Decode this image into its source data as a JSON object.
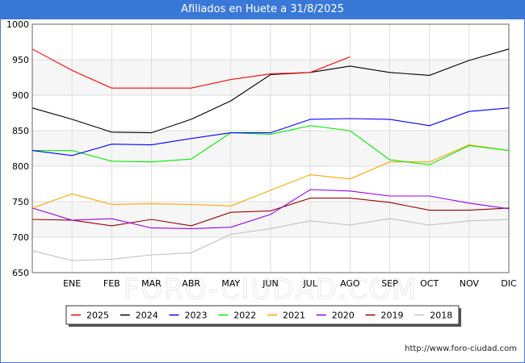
{
  "header": {
    "title": "Afiliados en Huete a 31/8/2025"
  },
  "footer": {
    "url": "http://www.foro-ciudad.com"
  },
  "watermark": "FORO-CIUDAD.COM",
  "chart_data": {
    "type": "line",
    "title": "Afiliados en Huete a 31/8/2025",
    "xlabel": "",
    "ylabel": "",
    "categories": [
      "",
      "ENE",
      "FEB",
      "MAR",
      "ABR",
      "MAY",
      "JUN",
      "JUL",
      "AGO",
      "SEP",
      "OCT",
      "NOV",
      "DIC"
    ],
    "ylim": [
      650,
      1000
    ],
    "yticks": [
      650,
      700,
      750,
      800,
      850,
      900,
      950,
      1000
    ],
    "grid": true,
    "legend_position": "bottom",
    "series": [
      {
        "name": "2025",
        "color": "#ff0000",
        "values": [
          965,
          935,
          910,
          910,
          910,
          922,
          930,
          932,
          954,
          null,
          null,
          null,
          null
        ]
      },
      {
        "name": "2024",
        "color": "#000000",
        "values": [
          882,
          866,
          848,
          847,
          866,
          892,
          929,
          932,
          941,
          932,
          928,
          949,
          965
        ]
      },
      {
        "name": "2023",
        "color": "#0000ff",
        "values": [
          822,
          815,
          831,
          830,
          839,
          847,
          847,
          866,
          867,
          866,
          857,
          877,
          882
        ]
      },
      {
        "name": "2022",
        "color": "#00ee00",
        "values": [
          822,
          822,
          807,
          806,
          810,
          847,
          845,
          857,
          850,
          809,
          802,
          829,
          822
        ]
      },
      {
        "name": "2021",
        "color": "#ffa500",
        "values": [
          741,
          761,
          746,
          747,
          746,
          744,
          766,
          788,
          782,
          806,
          806,
          830,
          822
        ]
      },
      {
        "name": "2020",
        "color": "#9900ee",
        "values": [
          741,
          724,
          726,
          713,
          712,
          714,
          732,
          767,
          765,
          758,
          758,
          748,
          740
        ]
      },
      {
        "name": "2019",
        "color": "#990000",
        "values": [
          725,
          724,
          716,
          725,
          716,
          735,
          737,
          755,
          755,
          749,
          738,
          738,
          741
        ]
      },
      {
        "name": "2018",
        "color": "#c0c0c0",
        "values": [
          681,
          667,
          669,
          675,
          678,
          704,
          712,
          723,
          717,
          726,
          717,
          723,
          725
        ]
      }
    ]
  }
}
